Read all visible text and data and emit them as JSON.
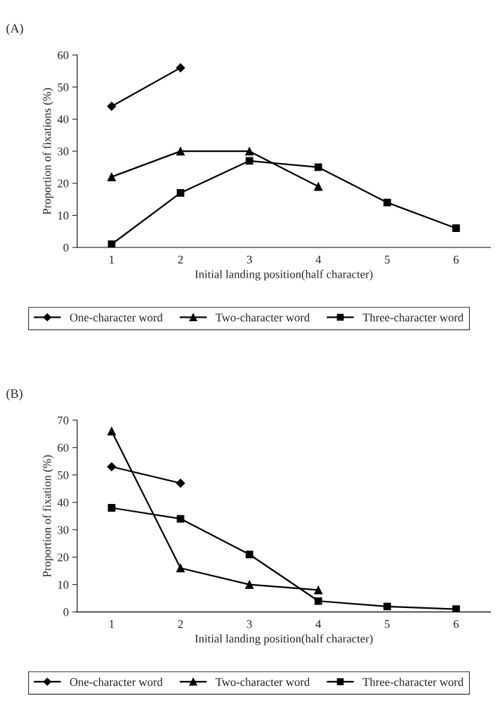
{
  "chart_data": [
    {
      "type": "line",
      "title": "(A)",
      "xlabel": "Initial landing position(half character)",
      "ylabel": "Proportion of fixations (%)",
      "categories": [
        "1",
        "2",
        "3",
        "4",
        "5",
        "6"
      ],
      "ylim": [
        0,
        60
      ],
      "yticks": [
        0,
        10,
        20,
        30,
        40,
        50,
        60
      ],
      "grid": false,
      "legend": "bottom",
      "series": [
        {
          "name": "One-character word",
          "color": "#000000",
          "marker": "diamond",
          "values": [
            44,
            56,
            null,
            null,
            null,
            null
          ]
        },
        {
          "name": "Two-character word",
          "color": "#000000",
          "marker": "triangle",
          "values": [
            22,
            30,
            30,
            19,
            null,
            null
          ]
        },
        {
          "name": "Three-character word",
          "color": "#000000",
          "marker": "square",
          "values": [
            1,
            17,
            27,
            25,
            14,
            6
          ]
        }
      ]
    },
    {
      "type": "line",
      "title": "(B)",
      "xlabel": "Initial landing position(half character)",
      "ylabel": "Proportion of fixation (%)",
      "categories": [
        "1",
        "2",
        "3",
        "4",
        "5",
        "6"
      ],
      "ylim": [
        0,
        70
      ],
      "yticks": [
        0,
        10,
        20,
        30,
        40,
        50,
        60,
        70
      ],
      "grid": false,
      "legend": "bottom",
      "series": [
        {
          "name": "One-character word",
          "color": "#000000",
          "marker": "diamond",
          "values": [
            53,
            47,
            null,
            null,
            null,
            null
          ]
        },
        {
          "name": "Two-character word",
          "color": "#000000",
          "marker": "triangle",
          "values": [
            66,
            16,
            10,
            8,
            null,
            null
          ]
        },
        {
          "name": "Three-character word",
          "color": "#000000",
          "marker": "square",
          "values": [
            38,
            34,
            21,
            4,
            2,
            1
          ]
        }
      ]
    }
  ]
}
